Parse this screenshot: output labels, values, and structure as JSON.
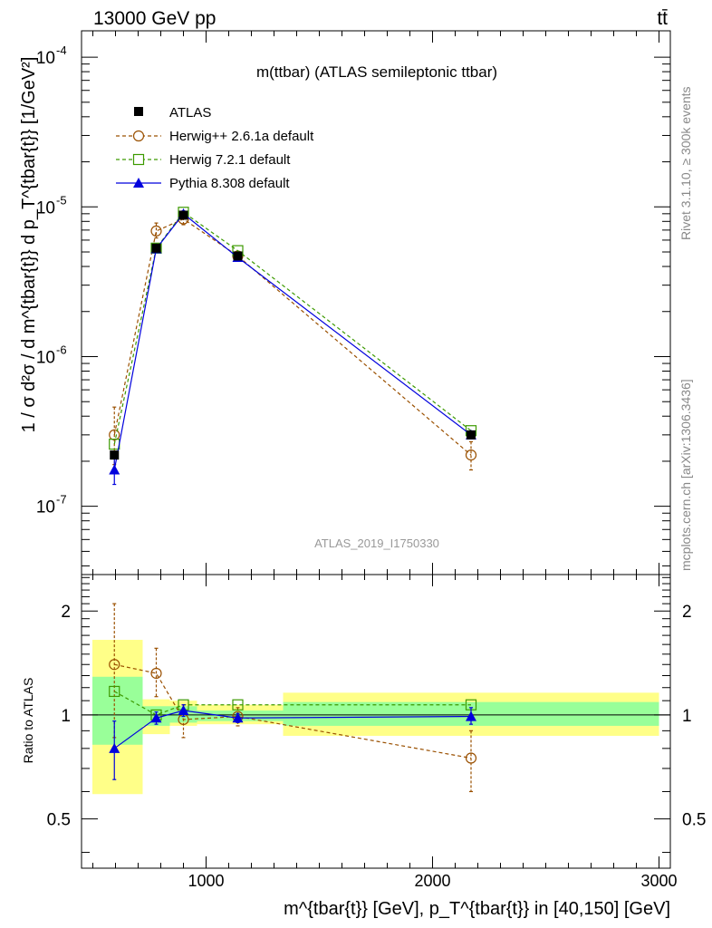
{
  "header": {
    "beam_label": "13000 GeV pp",
    "process_label": "tt̄",
    "plot_title": "m(ttbar) (ATLAS semileptonic ttbar)",
    "analysis_id": "ATLAS_2019_I1750330",
    "side_rivet": "Rivet 3.1.10, ≥ 300k events",
    "side_source": "mcplots.cern.ch [arXiv:1306.3436]"
  },
  "axes": {
    "y_main_label": "1 / σ d²σ / d m^{tbar{t}} d p_T^{tbar{t}} [1/GeV²]",
    "y_ratio_label": "Ratio to ATLAS",
    "x_label": "m^{tbar{t}} [GeV], p_T^{tbar{t}} in [40,150] [GeV]"
  },
  "legend": [
    {
      "name": "ATLAS",
      "marker": "filled-square",
      "color": "#000000"
    },
    {
      "name": "Herwig++ 2.6.1a default",
      "marker": "open-circle",
      "color": "#9a5000"
    },
    {
      "name": "Herwig 7.2.1 default",
      "marker": "open-square",
      "color": "#3c9a00"
    },
    {
      "name": "Pythia 8.308 default",
      "marker": "filled-triangle",
      "color": "#0000dd"
    }
  ],
  "chart_data": [
    {
      "type": "scatter",
      "panel": "main",
      "xlim": [
        450,
        3050
      ],
      "ylim": [
        3.5e-08,
        0.00015
      ],
      "log_y": true,
      "y_tick_labels": [
        "10^{-7}",
        "10^{-6}",
        "10^{-5}",
        "10^{-4}"
      ],
      "x": [
        595,
        780,
        900,
        1140,
        2170
      ],
      "bins": [
        [
          450,
          720
        ],
        [
          720,
          840
        ],
        [
          840,
          960
        ],
        [
          960,
          1340
        ],
        [
          1340,
          3000
        ]
      ],
      "series": [
        {
          "name": "ATLAS",
          "values": [
            2.2e-07,
            5.3e-06,
            8.8e-06,
            4.7e-06,
            3e-07
          ]
        },
        {
          "name": "Herwig++ 2.6.1a default",
          "values": [
            3e-07,
            6.9e-06,
            8.3e-06,
            4.7e-06,
            2.2e-07
          ],
          "err_up": [
            4.6e-07,
            7.8e-06,
            9.1e-06,
            5e-06,
            2.7e-07
          ],
          "err_down": [
            1.9e-07,
            6.2e-06,
            7.6e-06,
            4.5e-06,
            1.75e-07
          ]
        },
        {
          "name": "Herwig 7.2.1 default",
          "values": [
            2.6e-07,
            5.3e-06,
            9.2e-06,
            5.1e-06,
            3.2e-07
          ]
        },
        {
          "name": "Pythia 8.308 default",
          "values": [
            1.75e-07,
            5.25e-06,
            9e-06,
            4.6e-06,
            3e-07
          ],
          "err_up": [
            2.1e-07,
            5.5e-06,
            9.4e-06,
            4.8e-06,
            3.1e-07
          ],
          "err_down": [
            1.4e-07,
            5e-06,
            8.6e-06,
            4.4e-06,
            2.9e-07
          ]
        }
      ]
    },
    {
      "type": "scatter",
      "panel": "ratio",
      "xlim": [
        450,
        3050
      ],
      "ylim": [
        0.36,
        2.55
      ],
      "log_y": true,
      "y_ticks": [
        0.5,
        1,
        2
      ],
      "y_tick_labels": [
        "0.5",
        "1",
        "2"
      ],
      "x_ticks": [
        1000,
        2000,
        3000
      ],
      "x_tick_labels": [
        "1000",
        "2000",
        "3000"
      ],
      "x": [
        595,
        780,
        900,
        1140,
        2170
      ],
      "bands": {
        "bins": [
          [
            450,
            720
          ],
          [
            720,
            840
          ],
          [
            840,
            960
          ],
          [
            960,
            1340
          ],
          [
            1340,
            3000
          ]
        ],
        "yellow": [
          [
            0.59,
            1.65
          ],
          [
            0.88,
            1.11
          ],
          [
            0.93,
            1.1
          ],
          [
            0.94,
            1.07
          ],
          [
            0.87,
            1.16
          ]
        ],
        "green": [
          [
            0.82,
            1.29
          ],
          [
            0.93,
            1.06
          ],
          [
            0.95,
            1.06
          ],
          [
            0.96,
            1.03
          ],
          [
            0.93,
            1.09
          ]
        ]
      },
      "series": [
        {
          "name": "Herwig++ 2.6.1a default",
          "values": [
            1.4,
            1.32,
            0.97,
            0.99,
            0.75
          ],
          "err_up": [
            2.1,
            1.56,
            1.07,
            1.05,
            0.9
          ],
          "err_down": [
            0.86,
            1.13,
            0.86,
            0.93,
            0.6
          ]
        },
        {
          "name": "Herwig 7.2.1 default",
          "values": [
            1.17,
            1.0,
            1.07,
            1.07,
            1.07
          ]
        },
        {
          "name": "Pythia 8.308 default",
          "values": [
            0.8,
            0.98,
            1.03,
            0.98,
            0.99
          ],
          "err_up": [
            0.96,
            1.02,
            1.07,
            1.01,
            1.05
          ],
          "err_down": [
            0.65,
            0.94,
            0.99,
            0.95,
            0.94
          ]
        }
      ]
    }
  ]
}
